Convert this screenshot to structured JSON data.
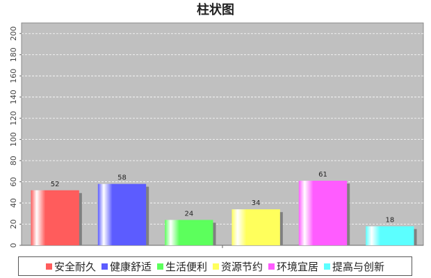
{
  "chart_data": {
    "type": "bar",
    "title": "柱状图",
    "categories": [
      "安全耐久",
      "健康舒适",
      "生活便利",
      "资源节约",
      "环境宜居",
      "提高与创新"
    ],
    "values": [
      52,
      58,
      24,
      34,
      61,
      18
    ],
    "colors": [
      "#ff5c5c",
      "#5c5cff",
      "#5cff5c",
      "#ffff5c",
      "#ff5cff",
      "#5cffff"
    ],
    "ylim": [
      0,
      210
    ],
    "yticks": [
      0,
      20,
      40,
      60,
      80,
      100,
      120,
      140,
      160,
      180,
      200
    ],
    "grid": true,
    "legend_position": "bottom",
    "plot_background": "#c0c0c0"
  }
}
